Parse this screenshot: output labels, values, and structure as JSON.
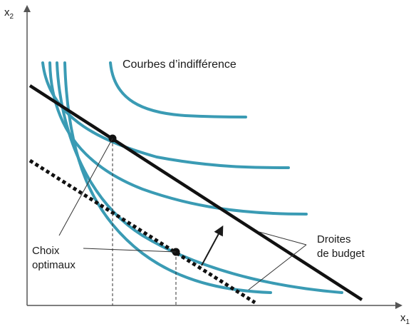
{
  "axes": {
    "x_label": "x",
    "x_sub": "1",
    "y_label": "x",
    "y_sub": "2"
  },
  "labels": {
    "indifference": "Courbes d’indifférence",
    "optimal_line1": "Choix",
    "optimal_line2": "optimaux",
    "budget_line1": "Droites",
    "budget_line2": "de budget"
  },
  "colors": {
    "curve": "#3a9bb4",
    "budget": "#111111",
    "axis": "#555555"
  }
}
